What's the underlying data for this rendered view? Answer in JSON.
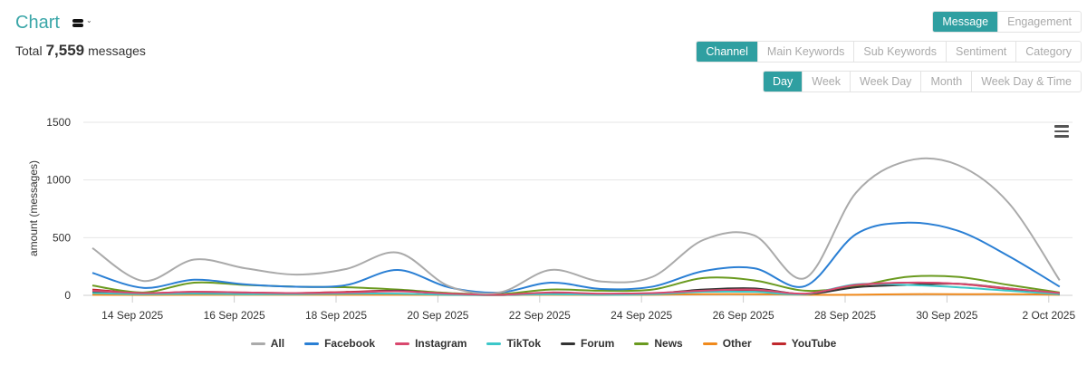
{
  "header": {
    "title": "Chart",
    "total_label": "Total",
    "total_value": "7,559",
    "total_unit": "messages"
  },
  "metric_tabs": [
    {
      "label": "Message",
      "active": true
    },
    {
      "label": "Engagement",
      "active": false
    }
  ],
  "group_tabs": [
    {
      "label": "Channel",
      "active": true
    },
    {
      "label": "Main Keywords",
      "active": false
    },
    {
      "label": "Sub Keywords",
      "active": false
    },
    {
      "label": "Sentiment",
      "active": false
    },
    {
      "label": "Category",
      "active": false
    }
  ],
  "period_tabs": [
    {
      "label": "Day",
      "active": true
    },
    {
      "label": "Week",
      "active": false
    },
    {
      "label": "Week Day",
      "active": false
    },
    {
      "label": "Month",
      "active": false
    },
    {
      "label": "Week Day & Time",
      "active": false
    }
  ],
  "chart_data": {
    "type": "line",
    "title": "",
    "xlabel": "",
    "ylabel": "amount (messages)",
    "ylim": [
      0,
      1500
    ],
    "yticks": [
      0,
      500,
      1000,
      1500
    ],
    "grid": true,
    "legend_position": "bottom",
    "x": [
      "13 Sep 2025",
      "14 Sep 2025",
      "15 Sep 2025",
      "16 Sep 2025",
      "17 Sep 2025",
      "18 Sep 2025",
      "19 Sep 2025",
      "20 Sep 2025",
      "21 Sep 2025",
      "22 Sep 2025",
      "23 Sep 2025",
      "24 Sep 2025",
      "25 Sep 2025",
      "26 Sep 2025",
      "27 Sep 2025",
      "28 Sep 2025",
      "29 Sep 2025",
      "30 Sep 2025",
      "1 Oct 2025",
      "2 Oct 2025"
    ],
    "xtick_labels": [
      "14 Sep 2025",
      "16 Sep 2025",
      "18 Sep 2025",
      "20 Sep 2025",
      "22 Sep 2025",
      "24 Sep 2025",
      "26 Sep 2025",
      "28 Sep 2025",
      "30 Sep 2025",
      "2 Oct 2025"
    ],
    "series": [
      {
        "name": "All",
        "color": "#aaaaaa",
        "values": [
          410,
          125,
          310,
          235,
          180,
          230,
          370,
          80,
          25,
          220,
          120,
          160,
          480,
          520,
          150,
          890,
          1165,
          1130,
          800,
          130
        ]
      },
      {
        "name": "Facebook",
        "color": "#2a7fd4",
        "values": [
          195,
          65,
          135,
          95,
          75,
          90,
          220,
          70,
          25,
          110,
          55,
          75,
          210,
          235,
          80,
          530,
          630,
          560,
          340,
          75
        ]
      },
      {
        "name": "Instagram",
        "color": "#d9486e",
        "values": [
          40,
          20,
          30,
          25,
          20,
          25,
          35,
          15,
          5,
          25,
          15,
          20,
          40,
          50,
          15,
          90,
          110,
          100,
          60,
          20
        ]
      },
      {
        "name": "TikTok",
        "color": "#3cc7c9",
        "values": [
          20,
          10,
          15,
          10,
          10,
          15,
          15,
          5,
          3,
          10,
          5,
          10,
          30,
          30,
          10,
          95,
          90,
          70,
          40,
          10
        ]
      },
      {
        "name": "Forum",
        "color": "#333333",
        "values": [
          30,
          15,
          20,
          15,
          15,
          20,
          40,
          10,
          3,
          15,
          10,
          15,
          50,
          60,
          10,
          70,
          90,
          100,
          60,
          10
        ]
      },
      {
        "name": "News",
        "color": "#6a9a1f",
        "values": [
          85,
          25,
          110,
          90,
          75,
          70,
          50,
          20,
          10,
          50,
          40,
          50,
          150,
          130,
          40,
          80,
          160,
          160,
          90,
          25
        ]
      },
      {
        "name": "Other",
        "color": "#f08a1c",
        "values": [
          5,
          3,
          5,
          5,
          5,
          5,
          5,
          3,
          2,
          5,
          3,
          5,
          10,
          10,
          5,
          5,
          10,
          10,
          10,
          5
        ]
      },
      {
        "name": "YouTube",
        "color": "#c0282d",
        "values": [
          50,
          20,
          30,
          25,
          20,
          30,
          40,
          10,
          5,
          20,
          10,
          15,
          40,
          45,
          10,
          85,
          110,
          100,
          55,
          15
        ]
      }
    ]
  }
}
